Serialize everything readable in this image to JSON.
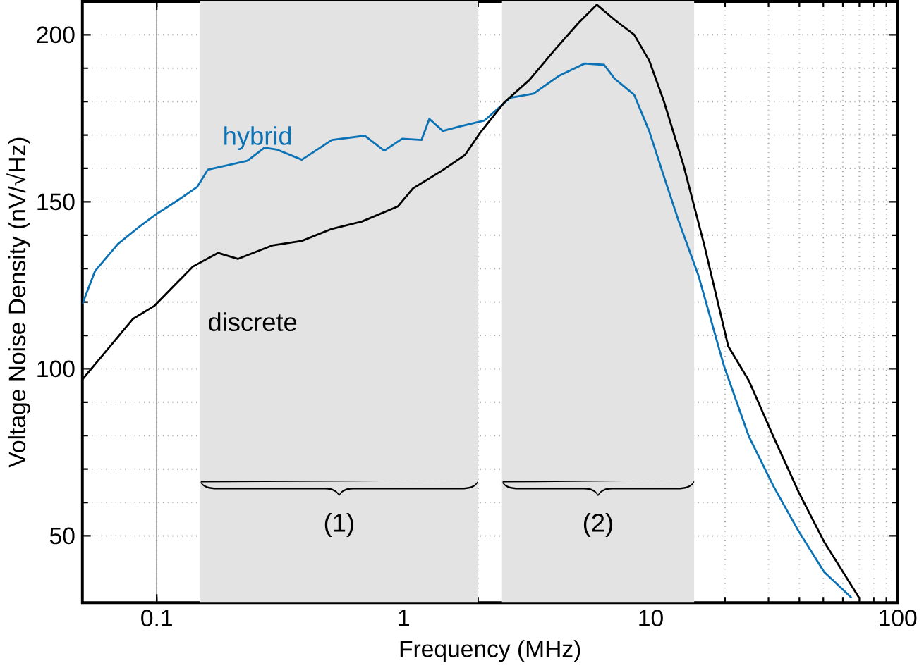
{
  "chart_data": {
    "type": "line",
    "xlabel": "Frequency (MHz)",
    "ylabel": "Voltage Noise Density (nV/√Hz)",
    "log": "x",
    "grid": true,
    "xlim": [
      0.05,
      100
    ],
    "ylim": [
      30,
      210
    ],
    "xticks": [
      0.1,
      1,
      10,
      100
    ],
    "yticks": [
      50,
      100,
      150,
      200
    ],
    "bands": [
      {
        "axis": "x",
        "from": 0.15,
        "to": 2,
        "label": "(1)",
        "color": "#e3e3e3"
      },
      {
        "axis": "x",
        "from": 2.5,
        "to": 15,
        "label": "(2)",
        "color": "#e3e3e3"
      }
    ],
    "series": [
      {
        "name": "hybrid",
        "color": "#0b72b5",
        "x": [
          0.05,
          0.0563,
          0.0697,
          0.0859,
          0.1,
          0.122,
          0.146,
          0.161,
          0.233,
          0.273,
          0.308,
          0.387,
          0.512,
          0.696,
          0.834,
          0.986,
          1.18,
          1.27,
          1.44,
          1.68,
          2.12,
          2.69,
          3.36,
          4.27,
          5.41,
          6.48,
          7.14,
          8.58,
          9.86,
          11.3,
          13.0,
          15.6,
          19.8,
          25.0,
          31.4,
          39.8,
          50.4,
          65.0
        ],
        "values": [
          119.4,
          129.3,
          137.4,
          142.8,
          146.4,
          150.5,
          154.5,
          159.6,
          162.3,
          166.2,
          165.6,
          162.6,
          168.5,
          169.8,
          165.3,
          168.9,
          168.5,
          174.8,
          171.2,
          172.5,
          174.3,
          181.1,
          182.4,
          187.8,
          191.4,
          191,
          186.9,
          182,
          171.2,
          157.7,
          144.1,
          128,
          100.9,
          79.7,
          64.9,
          51.3,
          39.2,
          31.5
        ]
      },
      {
        "name": "discrete",
        "color": "#000000",
        "x": [
          0.05,
          0.08,
          0.098,
          0.14,
          0.177,
          0.213,
          0.293,
          0.387,
          0.512,
          0.677,
          0.946,
          1.09,
          1.44,
          1.77,
          2.04,
          2.55,
          3.23,
          4.09,
          5.11,
          6.05,
          7.14,
          8.58,
          9.86,
          11.3,
          13.6,
          16.5,
          20.6,
          25,
          31.4,
          39.8,
          50.4,
          69.8
        ],
        "values": [
          96.8,
          114.9,
          118.9,
          130.6,
          134.7,
          132.9,
          136.9,
          138.3,
          141.9,
          144.1,
          148.6,
          154,
          159.5,
          164,
          170.7,
          179.7,
          186.5,
          195.5,
          203.6,
          209,
          204.5,
          200,
          192.3,
          180.2,
          160.8,
          136.9,
          106.8,
          96.4,
          79.7,
          63,
          48.2,
          31.5
        ]
      }
    ]
  }
}
